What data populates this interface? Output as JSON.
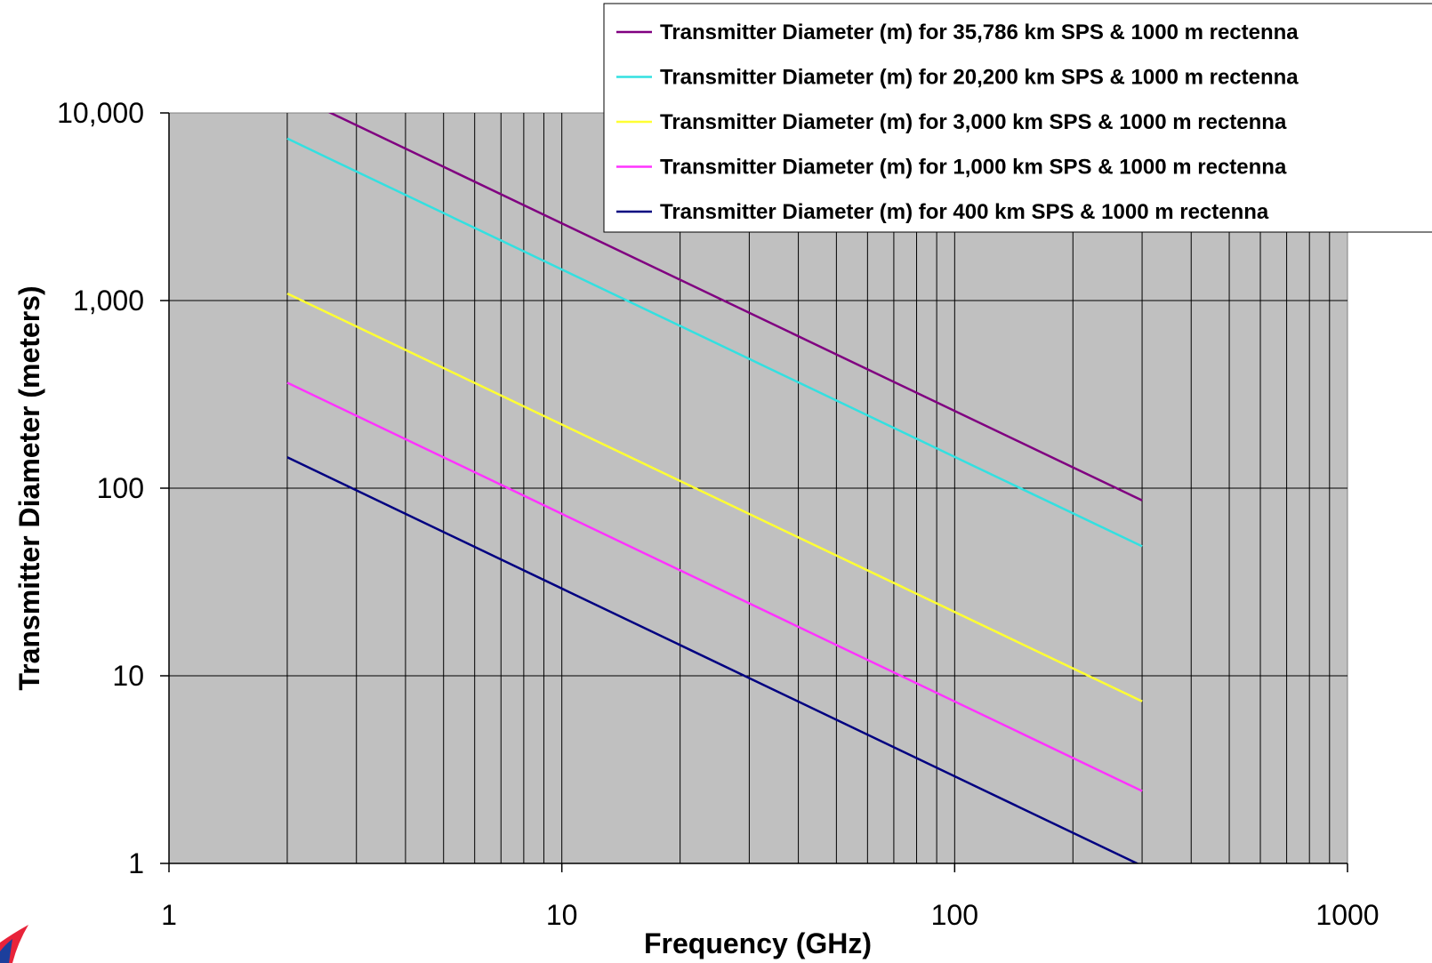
{
  "chart_data": {
    "type": "line",
    "title": "",
    "xlabel": "Frequency (GHz)",
    "ylabel": "Transmitter Diameter (meters)",
    "x_scale": "log",
    "y_scale": "log",
    "xlim": [
      1,
      1000
    ],
    "ylim": [
      1,
      10000
    ],
    "x_ticks": [
      {
        "value": 1,
        "label": "1"
      },
      {
        "value": 10,
        "label": "10"
      },
      {
        "value": 100,
        "label": "100"
      },
      {
        "value": 1000,
        "label": "1000"
      }
    ],
    "y_ticks": [
      {
        "value": 1,
        "label": "1"
      },
      {
        "value": 10,
        "label": "10"
      },
      {
        "value": 100,
        "label": "100"
      },
      {
        "value": 1000,
        "label": "1,000"
      },
      {
        "value": 10000,
        "label": "10,000"
      }
    ],
    "grid": "vertical lines at 2, 3, ..., 900 GHz and horizontal lines at each decade",
    "plot_background": "#c0c0c0",
    "legend_position": "top-right",
    "series": [
      {
        "name": "Transmitter Diameter (m) for 35,786 km SPS & 1000 m rectenna",
        "color": "#800080",
        "x": [
          2,
          300
        ],
        "y": [
          12900,
          86
        ]
      },
      {
        "name": "Transmitter Diameter (m) for 20,200 km SPS & 1000 m rectenna",
        "color": "#33e0e0",
        "x": [
          2,
          300
        ],
        "y": [
          7300,
          49
        ]
      },
      {
        "name": "Transmitter Diameter (m) for 3,000 km SPS & 1000 m rectenna",
        "color": "#ffff33",
        "x": [
          2,
          300
        ],
        "y": [
          1090,
          7.3
        ]
      },
      {
        "name": "Transmitter Diameter (m) for 1,000 km SPS & 1000 m rectenna",
        "color": "#ff33ff",
        "x": [
          2,
          300
        ],
        "y": [
          365,
          2.43
        ]
      },
      {
        "name": "Transmitter Diameter (m) for 400 km SPS & 1000 m rectenna",
        "color": "#000080",
        "x": [
          2,
          300
        ],
        "y": [
          146,
          0.97
        ]
      }
    ]
  }
}
